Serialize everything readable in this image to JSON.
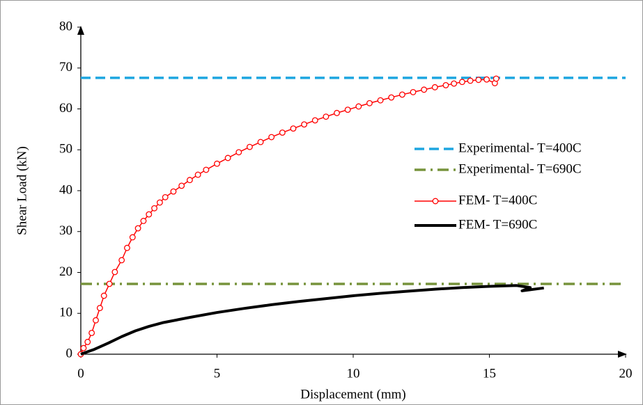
{
  "chart_data": {
    "type": "line",
    "x_label": "Displacement (mm)",
    "y_label": "Shear Load (kN)",
    "xlim": [
      0,
      20
    ],
    "xticks": [
      0,
      5,
      10,
      15,
      20
    ],
    "ylim": [
      0,
      80
    ],
    "yticks": [
      0,
      10,
      20,
      30,
      40,
      50,
      60,
      70,
      80
    ],
    "grid": false,
    "legend": "right",
    "series": [
      {
        "name": "Experimental- T=400C",
        "color": "#1ea6e0",
        "dash": "dashed",
        "marker": false,
        "x": [
          0,
          20
        ],
        "values": [
          67.6,
          67.6
        ]
      },
      {
        "name": "Experimental- T=690C",
        "color": "#77933c",
        "dash": "dashdot",
        "marker": false,
        "x": [
          0,
          20
        ],
        "values": [
          17.2,
          17.2
        ]
      },
      {
        "name": "FEM- T=400C",
        "color": "#ff0000",
        "dash": "solid",
        "marker": true,
        "x": [
          0,
          0.1,
          0.25,
          0.4,
          0.55,
          0.7,
          0.85,
          1.05,
          1.25,
          1.5,
          1.7,
          1.9,
          2.1,
          2.3,
          2.5,
          2.7,
          2.9,
          3.1,
          3.4,
          3.7,
          4.0,
          4.3,
          4.6,
          5.0,
          5.4,
          5.8,
          6.2,
          6.6,
          7.0,
          7.4,
          7.8,
          8.2,
          8.6,
          9.0,
          9.4,
          9.8,
          10.2,
          10.6,
          11.0,
          11.4,
          11.8,
          12.2,
          12.6,
          13.0,
          13.4,
          13.7,
          14.0,
          14.3,
          14.6,
          14.9,
          15.2,
          15.25
        ],
        "values": [
          0,
          1.5,
          3,
          5.2,
          8.3,
          11.3,
          14.3,
          17.2,
          20.1,
          23,
          26,
          28.6,
          30.8,
          32.6,
          34.2,
          35.7,
          37.1,
          38.4,
          39.8,
          41.2,
          42.6,
          43.9,
          45.1,
          46.6,
          48,
          49.4,
          50.7,
          51.9,
          53.1,
          54.2,
          55.2,
          56.2,
          57.2,
          58.1,
          59,
          59.8,
          60.6,
          61.4,
          62.1,
          62.8,
          63.5,
          64.1,
          64.7,
          65.3,
          65.8,
          66.2,
          66.6,
          66.9,
          67.1,
          67.2,
          66.3,
          67.4
        ]
      },
      {
        "name": "FEM- T=690C",
        "color": "#000000",
        "dash": "solid",
        "marker": false,
        "x": [
          0,
          0.5,
          1,
          1.5,
          2,
          2.5,
          3,
          4,
          5,
          6,
          7,
          8,
          9,
          10,
          11,
          12,
          13,
          14,
          15,
          16,
          16.5,
          16.2,
          17
        ],
        "values": [
          0,
          1.2,
          2.7,
          4.3,
          5.7,
          6.8,
          7.7,
          9,
          10.2,
          11.2,
          12.1,
          12.9,
          13.6,
          14.3,
          14.9,
          15.4,
          15.9,
          16.3,
          16.6,
          16.8,
          16.3,
          15.5,
          16.2
        ]
      }
    ]
  }
}
